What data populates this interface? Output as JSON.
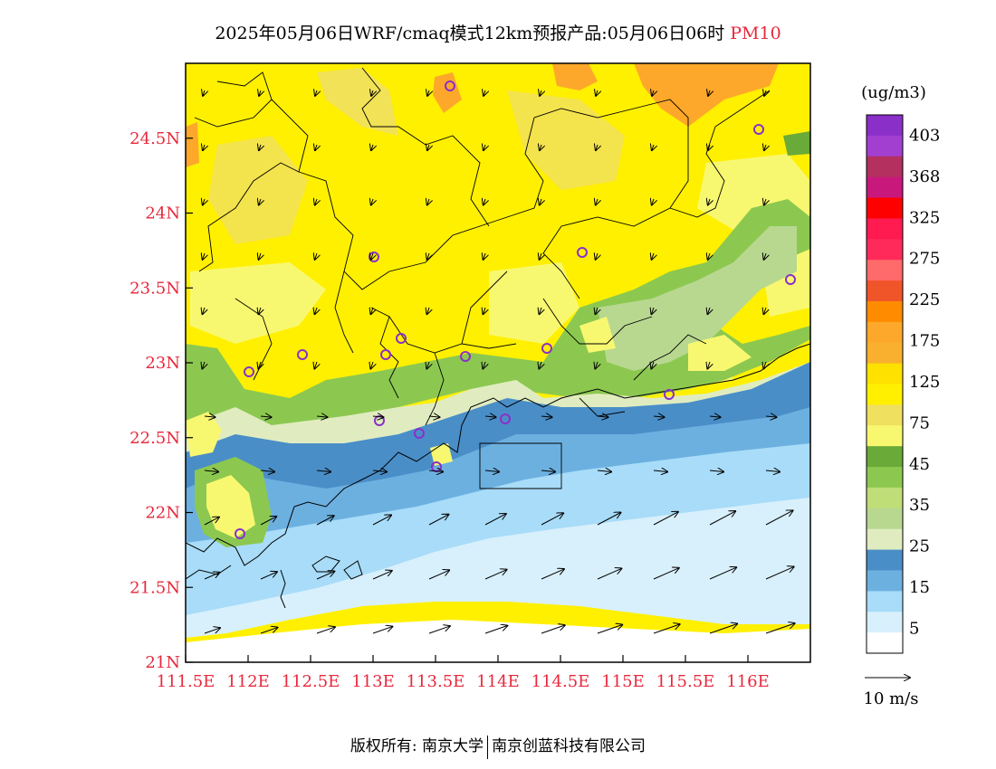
{
  "title": {
    "main": "2025年05月06日WRF/cmaq模式12km预报产品:05月06日06时",
    "pollutant": "PM10"
  },
  "axes": {
    "lat_labels": [
      "24.5N",
      "24N",
      "23.5N",
      "23N",
      "22.5N",
      "22N",
      "21.5N",
      "21N"
    ],
    "lon_labels": [
      "111.5E",
      "112E",
      "112.5E",
      "113E",
      "113.5E",
      "114E",
      "114.5E",
      "115E",
      "115.5E",
      "116E"
    ],
    "lat_range": [
      21.0,
      25.0
    ],
    "lon_range": [
      111.5,
      116.5
    ]
  },
  "colorbar": {
    "unit": "(ug/m3)",
    "labels": [
      "403",
      "368",
      "325",
      "275",
      "225",
      "175",
      "125",
      "75",
      "45",
      "35",
      "25",
      "15",
      "5"
    ],
    "colors": [
      "#8b2fc9",
      "#a33fd0",
      "#b3305f",
      "#c8187c",
      "#ff0000",
      "#ff1a50",
      "#ff2a5a",
      "#ff6a6a",
      "#f0552a",
      "#ff8c00",
      "#fda82a",
      "#f8b02e",
      "#ffe100",
      "#fff000",
      "#f0e060",
      "#f8f870",
      "#6aaa38",
      "#8cc850",
      "#c0de78",
      "#b8d890",
      "#e0ecc0",
      "#4a8ec8",
      "#6cb0e0",
      "#a8dcf8",
      "#d8f0fc",
      "#ffffff"
    ]
  },
  "wind_legend": {
    "label": "10 m/s"
  },
  "footer": {
    "left": "版权所有: 南京大学",
    "right": "南京创蓝科技有限公司"
  }
}
